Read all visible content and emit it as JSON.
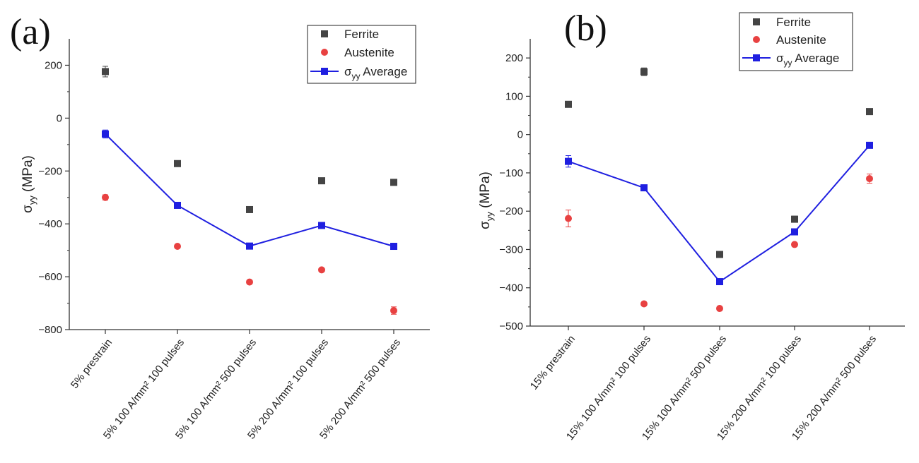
{
  "chart_data": [
    {
      "type": "scatter",
      "panel_label": "(a)",
      "ylabel": "σ_yy (MPa)",
      "ylim": [
        -800,
        300
      ],
      "yticks": [
        200,
        0,
        -200,
        -400,
        -600,
        -800
      ],
      "categories": [
        "5% prestrain",
        "5% 100 A/mm² 100 pulses",
        "5% 100 A/mm² 500 pulses",
        "5% 200 A/mm² 100 pulses",
        "5% 200 A/mm² 500 pulses"
      ],
      "series": [
        {
          "name": "Ferrite",
          "kind": "scatter",
          "marker": "square",
          "color": "#444444",
          "values": [
            176,
            -172,
            -346,
            -237,
            -243
          ],
          "errors": [
            20,
            5,
            10,
            5,
            5
          ]
        },
        {
          "name": "Austenite",
          "kind": "scatter",
          "marker": "circle",
          "color": "#e84141",
          "values": [
            -300,
            -485,
            -620,
            -574,
            -728
          ],
          "errors": [
            10,
            5,
            5,
            5,
            14
          ]
        },
        {
          "name": "σyy Average",
          "kind": "line",
          "marker": "square",
          "color": "#1f1fe0",
          "values": [
            -60,
            -330,
            -484,
            -406,
            -485
          ],
          "errors": [
            15,
            5,
            5,
            5,
            5
          ]
        }
      ],
      "legend_position": "top-right",
      "grid": false
    },
    {
      "type": "scatter",
      "panel_label": "(b)",
      "ylabel": "σ_yy (MPa)",
      "ylim": [
        -500,
        250
      ],
      "yticks": [
        200,
        100,
        0,
        -100,
        -200,
        -300,
        -400,
        -500
      ],
      "categories": [
        "15% prestrain",
        "15% 100 A/mm² 100 pulses",
        "15% 100 A/mm² 500 pulses",
        "15% 200 A/mm² 100 pulses",
        "15% 200 A/mm² 500 pulses"
      ],
      "series": [
        {
          "name": "Ferrite",
          "kind": "scatter",
          "marker": "square",
          "color": "#444444",
          "values": [
            79,
            164,
            -313,
            -221,
            60
          ],
          "errors": [
            5,
            10,
            5,
            8,
            5
          ]
        },
        {
          "name": "Austenite",
          "kind": "scatter",
          "marker": "circle",
          "color": "#e84141",
          "values": [
            -219,
            -442,
            -454,
            -287,
            -115
          ],
          "errors": [
            22,
            5,
            5,
            5,
            12
          ]
        },
        {
          "name": "σyy Average",
          "kind": "line",
          "marker": "square",
          "color": "#1f1fe0",
          "values": [
            -70,
            -139,
            -384,
            -254,
            -28
          ],
          "errors": [
            15,
            5,
            5,
            5,
            5
          ]
        }
      ],
      "legend_position": "top-right",
      "grid": false
    }
  ]
}
